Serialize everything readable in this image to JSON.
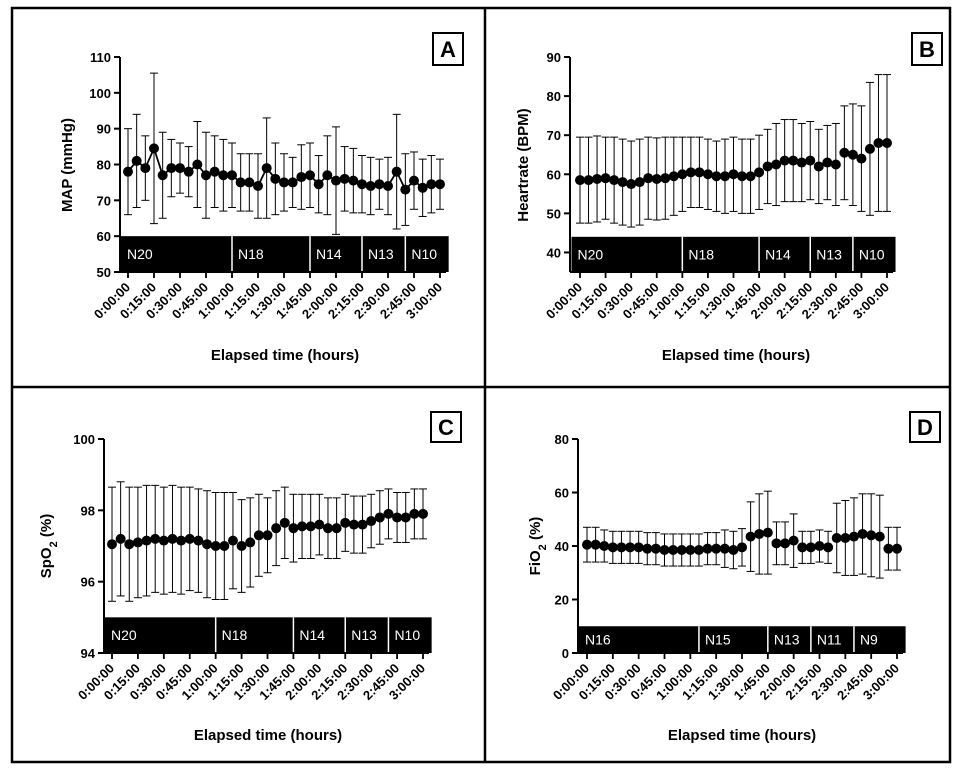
{
  "chart_data": [
    {
      "panel": "A",
      "type": "scatter",
      "ylabel": "MAP (mmHg)",
      "xlabel": "Elapsed time (hours)",
      "ylim": [
        50,
        110
      ],
      "yticks": [
        50,
        60,
        70,
        80,
        90,
        100,
        110
      ],
      "xlim_minutes": [
        0,
        180
      ],
      "xticks": [
        "0:00:00",
        "0:15:00",
        "0:30:00",
        "0:45:00",
        "1:00:00",
        "1:15:00",
        "1:30:00",
        "1:45:00",
        "2:00:00",
        "2:15:00",
        "2:30:00",
        "2:45:00",
        "3:00:00"
      ],
      "segments": [
        {
          "label": "N20",
          "start": -5,
          "end": 60
        },
        {
          "label": "N18",
          "start": 60,
          "end": 105
        },
        {
          "label": "N14",
          "start": 105,
          "end": 135
        },
        {
          "label": "N13",
          "start": 135,
          "end": 160
        },
        {
          "label": "N10",
          "start": 160,
          "end": 185
        }
      ],
      "segment_band": [
        50,
        60
      ],
      "connected": true,
      "series": [
        {
          "x": [
            0,
            5,
            10,
            15,
            20,
            25,
            30,
            35,
            40,
            45,
            50,
            55,
            60,
            65,
            70,
            75,
            80,
            85,
            90,
            95,
            100,
            105,
            110,
            115,
            120,
            125,
            130,
            135,
            140,
            145,
            150,
            155,
            160,
            165,
            170,
            175,
            180
          ],
          "y": [
            78,
            81,
            79,
            84.5,
            77,
            79,
            79,
            78,
            80,
            77,
            78,
            77,
            77,
            75,
            75,
            74,
            79,
            76,
            75,
            75,
            76.5,
            77,
            74.5,
            77,
            75.5,
            76,
            75.5,
            74.5,
            74,
            74.5,
            74,
            78,
            73,
            75.5,
            73.5,
            74.5,
            74.5
          ],
          "err": [
            12,
            13,
            9,
            21,
            12,
            8,
            7,
            7,
            12,
            12,
            10,
            10,
            9,
            8,
            8,
            9,
            14,
            10,
            8,
            7,
            9,
            9,
            8,
            11,
            15,
            9,
            9,
            8,
            8,
            7,
            8,
            16,
            10,
            8,
            8,
            8,
            7
          ]
        }
      ]
    },
    {
      "panel": "B",
      "type": "scatter",
      "ylabel": "Heartrate (BPM)",
      "xlabel": "Elapsed time (hours)",
      "ylim": [
        35,
        90
      ],
      "yticks": [
        40,
        50,
        60,
        70,
        80,
        90
      ],
      "xlim_minutes": [
        0,
        180
      ],
      "xticks": [
        "0:00:00",
        "0:15:00",
        "0:30:00",
        "0:45:00",
        "1:00:00",
        "1:15:00",
        "1:30:00",
        "1:45:00",
        "2:00:00",
        "2:15:00",
        "2:30:00",
        "2:45:00",
        "3:00:00"
      ],
      "segments": [
        {
          "label": "N20",
          "start": -5,
          "end": 60
        },
        {
          "label": "N18",
          "start": 60,
          "end": 105
        },
        {
          "label": "N14",
          "start": 105,
          "end": 135
        },
        {
          "label": "N13",
          "start": 135,
          "end": 160
        },
        {
          "label": "N10",
          "start": 160,
          "end": 185
        }
      ],
      "segment_band": [
        35,
        44
      ],
      "connected": false,
      "series": [
        {
          "x": [
            0,
            5,
            10,
            15,
            20,
            25,
            30,
            35,
            40,
            45,
            50,
            55,
            60,
            65,
            70,
            75,
            80,
            85,
            90,
            95,
            100,
            105,
            110,
            115,
            120,
            125,
            130,
            135,
            140,
            145,
            150,
            155,
            160,
            165,
            170,
            175,
            180
          ],
          "y": [
            58.5,
            58.5,
            58.8,
            59,
            58.5,
            58,
            57.5,
            58,
            59,
            58.8,
            59,
            59.5,
            60,
            60.5,
            60.5,
            60,
            59.5,
            59.5,
            60,
            59.5,
            59.5,
            60.5,
            62,
            62.5,
            63.5,
            63.5,
            63,
            63.5,
            62,
            63,
            62.5,
            65.5,
            65,
            64,
            66.5,
            68,
            68
          ],
          "err": [
            11,
            11,
            11,
            10.5,
            11,
            11,
            11,
            11,
            10.5,
            10.5,
            10.5,
            10,
            9.5,
            9,
            9,
            9,
            9,
            9.5,
            9.5,
            9.5,
            9.5,
            9.5,
            9.5,
            10.5,
            10.5,
            10.5,
            10,
            10,
            9.5,
            9.5,
            10.5,
            12,
            13,
            13.5,
            17,
            17.5,
            17.5
          ]
        }
      ]
    },
    {
      "panel": "C",
      "type": "scatter",
      "ylabel": "SpO2 (%)",
      "xlabel": "Elapsed time (hours)",
      "ylim": [
        94,
        100
      ],
      "yticks": [
        94,
        96,
        98,
        100
      ],
      "xlim_minutes": [
        0,
        180
      ],
      "xticks": [
        "0:00:00",
        "0:15:00",
        "0:30:00",
        "0:45:00",
        "1:00:00",
        "1:15:00",
        "1:30:00",
        "1:45:00",
        "2:00:00",
        "2:15:00",
        "2:30:00",
        "2:45:00",
        "3:00:00"
      ],
      "segments": [
        {
          "label": "N20",
          "start": -5,
          "end": 60
        },
        {
          "label": "N18",
          "start": 60,
          "end": 105
        },
        {
          "label": "N14",
          "start": 105,
          "end": 135
        },
        {
          "label": "N13",
          "start": 135,
          "end": 160
        },
        {
          "label": "N10",
          "start": 160,
          "end": 185
        }
      ],
      "segment_band": [
        94,
        95
      ],
      "connected": false,
      "series": [
        {
          "x": [
            0,
            5,
            10,
            15,
            20,
            25,
            30,
            35,
            40,
            45,
            50,
            55,
            60,
            65,
            70,
            75,
            80,
            85,
            90,
            95,
            100,
            105,
            110,
            115,
            120,
            125,
            130,
            135,
            140,
            145,
            150,
            155,
            160,
            165,
            170,
            175,
            180
          ],
          "y": [
            97.05,
            97.2,
            97.05,
            97.1,
            97.15,
            97.2,
            97.15,
            97.2,
            97.15,
            97.2,
            97.15,
            97.05,
            97.0,
            97.0,
            97.15,
            97.0,
            97.1,
            97.3,
            97.3,
            97.5,
            97.65,
            97.5,
            97.55,
            97.55,
            97.6,
            97.5,
            97.5,
            97.65,
            97.6,
            97.6,
            97.7,
            97.8,
            97.9,
            97.8,
            97.8,
            97.9,
            97.9
          ],
          "err": [
            1.6,
            1.6,
            1.6,
            1.55,
            1.55,
            1.5,
            1.5,
            1.5,
            1.5,
            1.45,
            1.45,
            1.5,
            1.5,
            1.5,
            1.35,
            1.3,
            1.25,
            1.15,
            1.05,
            1.05,
            1.0,
            0.95,
            0.9,
            0.9,
            0.85,
            0.85,
            0.85,
            0.8,
            0.8,
            0.8,
            0.75,
            0.75,
            0.7,
            0.7,
            0.7,
            0.7,
            0.7
          ]
        }
      ]
    },
    {
      "panel": "D",
      "type": "scatter",
      "ylabel": "FiO2 (%)",
      "xlabel": "Elapsed time (hours)",
      "ylim": [
        0,
        80
      ],
      "yticks": [
        0,
        20,
        40,
        60,
        80
      ],
      "xlim_minutes": [
        0,
        180
      ],
      "xticks": [
        "0:00:00",
        "0:15:00",
        "0:30:00",
        "0:45:00",
        "1:00:00",
        "1:15:00",
        "1:30:00",
        "1:45:00",
        "2:00:00",
        "2:15:00",
        "2:30:00",
        "2:45:00",
        "3:00:00"
      ],
      "segments": [
        {
          "label": "N16",
          "start": -5,
          "end": 65
        },
        {
          "label": "N15",
          "start": 65,
          "end": 105
        },
        {
          "label": "N13",
          "start": 105,
          "end": 130
        },
        {
          "label": "N11",
          "start": 130,
          "end": 155
        },
        {
          "label": "N9",
          "start": 155,
          "end": 185
        }
      ],
      "segment_band": [
        0,
        10
      ],
      "connected": false,
      "series": [
        {
          "x": [
            0,
            5,
            10,
            15,
            20,
            25,
            30,
            35,
            40,
            45,
            50,
            55,
            60,
            65,
            70,
            75,
            80,
            85,
            90,
            95,
            100,
            105,
            110,
            115,
            120,
            125,
            130,
            135,
            140,
            145,
            150,
            155,
            160,
            165,
            170,
            175,
            180
          ],
          "y": [
            40.5,
            40.5,
            40,
            39.5,
            39.5,
            39.5,
            39.5,
            39,
            39,
            38.5,
            38.5,
            38.5,
            38.5,
            38.5,
            39,
            39,
            39,
            38.5,
            39.5,
            43.5,
            44.5,
            45,
            41,
            41,
            42,
            39.5,
            39.5,
            40,
            39.5,
            43,
            43,
            43.5,
            44.5,
            44,
            43.5,
            39,
            39
          ],
          "err": [
            6.5,
            6.5,
            6,
            6,
            6,
            6,
            6,
            6,
            6,
            6,
            6,
            6,
            6,
            6,
            6,
            6,
            7,
            7,
            7,
            13,
            15,
            15.5,
            8,
            8,
            10,
            6,
            6,
            6,
            6,
            13,
            14,
            14.5,
            15,
            15.5,
            15.5,
            8,
            8
          ]
        }
      ]
    }
  ]
}
